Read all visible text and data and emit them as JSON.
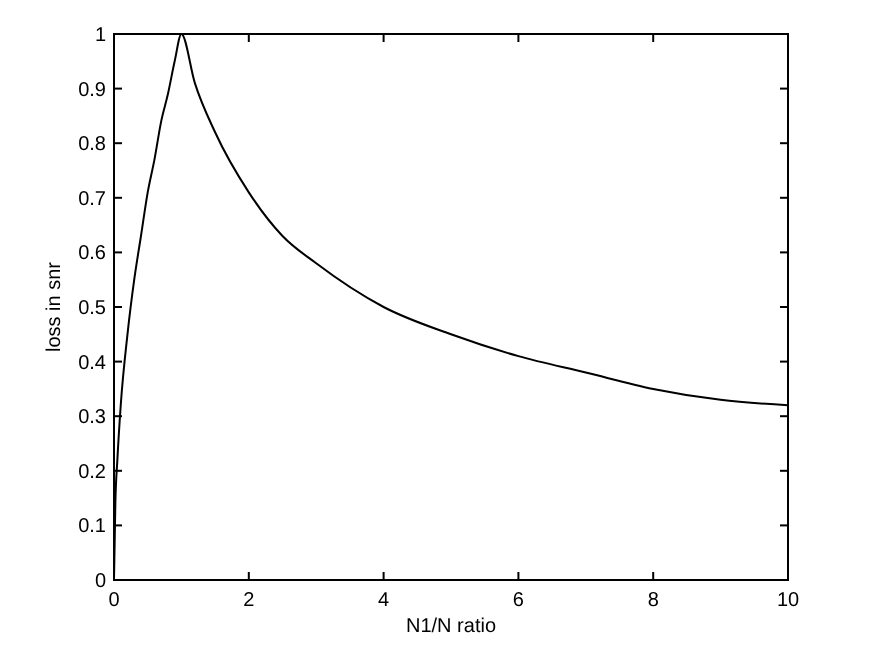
{
  "chart_data": {
    "type": "line",
    "xlabel": "N1/N ratio",
    "ylabel": "loss in snr",
    "x": [
      0,
      0.02,
      0.05,
      0.1,
      0.2,
      0.3,
      0.4,
      0.5,
      0.6,
      0.7,
      0.8,
      0.9,
      1,
      1.2,
      1.5,
      2,
      2.5,
      3,
      4,
      5,
      6,
      7,
      8,
      9,
      10
    ],
    "series": [
      {
        "color": "#000000",
        "values": [
          0,
          0.14,
          0.22,
          0.32,
          0.45,
          0.55,
          0.63,
          0.71,
          0.77,
          0.84,
          0.89,
          0.95,
          1,
          0.91,
          0.82,
          0.71,
          0.63,
          0.58,
          0.5,
          0.45,
          0.41,
          0.38,
          0.35,
          0.33,
          0.32
        ]
      }
    ],
    "xlim": [
      0,
      10
    ],
    "xticks": [
      0,
      2,
      4,
      6,
      8,
      10
    ],
    "ylim": [
      0,
      1
    ],
    "yticks": [
      0,
      0.1,
      0.2,
      0.3,
      0.4,
      0.5,
      0.6,
      0.7,
      0.8,
      0.9,
      1
    ],
    "marker": "none",
    "line_style": "solid"
  }
}
